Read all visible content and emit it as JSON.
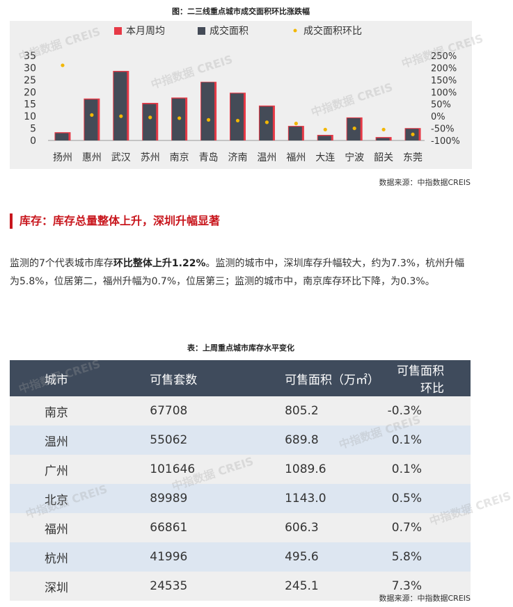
{
  "chart_caption": "图：二三线重点城市成交面积环比涨跌幅",
  "chart_source": "数据来源：中指数据CREIS",
  "watermark": "中指数据 CREIS",
  "chart_data": {
    "type": "bar",
    "categories": [
      "扬州",
      "惠州",
      "武汉",
      "苏州",
      "南京",
      "青岛",
      "济南",
      "温州",
      "福州",
      "大连",
      "宁波",
      "韶关",
      "东莞"
    ],
    "series": [
      {
        "name": "本月周均",
        "type": "bar",
        "axis": "left",
        "color": "#e63946",
        "values": [
          3.4,
          17.3,
          28.7,
          15.5,
          17.7,
          24.2,
          19.7,
          14.4,
          6.0,
          2.3,
          9.5,
          1.4,
          5.1
        ]
      },
      {
        "name": "成交面积",
        "type": "bar",
        "axis": "left",
        "color": "#444b57",
        "values": [
          3.0,
          16.9,
          28.3,
          15.0,
          17.3,
          24.0,
          19.4,
          14.0,
          5.7,
          1.9,
          9.2,
          1.0,
          4.8
        ]
      },
      {
        "name": "成交面积环比",
        "type": "scatter",
        "axis": "right",
        "color": "#f2b705",
        "values": [
          210,
          5,
          0,
          -5,
          -8,
          -15,
          -18,
          -25,
          -30,
          -55,
          -50,
          -55,
          -75
        ]
      }
    ],
    "y_left": {
      "ticks": [
        "35",
        "30",
        "25",
        "20",
        "15",
        "10",
        "5",
        "0"
      ],
      "min": 0,
      "max": 35
    },
    "y_right": {
      "ticks": [
        "250%",
        "200%",
        "150%",
        "100%",
        "50%",
        "0%",
        "-50%",
        "-100%"
      ],
      "min": -100,
      "max": 250
    },
    "legend_position": "top"
  },
  "section_heading": "库存：库存总量整体上升，深圳升幅显著",
  "paragraph": {
    "part1": "监测的7个代表城市库存",
    "bold": "环比整体上升1.22%",
    "part2": "。监测的城市中，深圳库存升幅较大，约为7.3%，杭州升幅为5.8%，位居第二，福州升幅为0.7%，位居第三；监测的城市中，南京库存环比下降，为0.3%。"
  },
  "table_caption": "表：上周重点城市库存水平变化",
  "table_source": "数据来源：中指数据CREIS",
  "table": {
    "headers": [
      "城市",
      "可售套数",
      "可售面积（万㎡）",
      "可售面积环比"
    ],
    "rows": [
      [
        "南京",
        "67708",
        "805.2",
        "-0.3%"
      ],
      [
        "温州",
        "55062",
        "689.8",
        "0.1%"
      ],
      [
        "广州",
        "101646",
        "1089.6",
        "0.1%"
      ],
      [
        "北京",
        "89989",
        "1143.0",
        "0.5%"
      ],
      [
        "福州",
        "66861",
        "606.3",
        "0.7%"
      ],
      [
        "杭州",
        "41996",
        "495.6",
        "5.8%"
      ],
      [
        "深圳",
        "24535",
        "245.1",
        "7.3%"
      ]
    ]
  }
}
